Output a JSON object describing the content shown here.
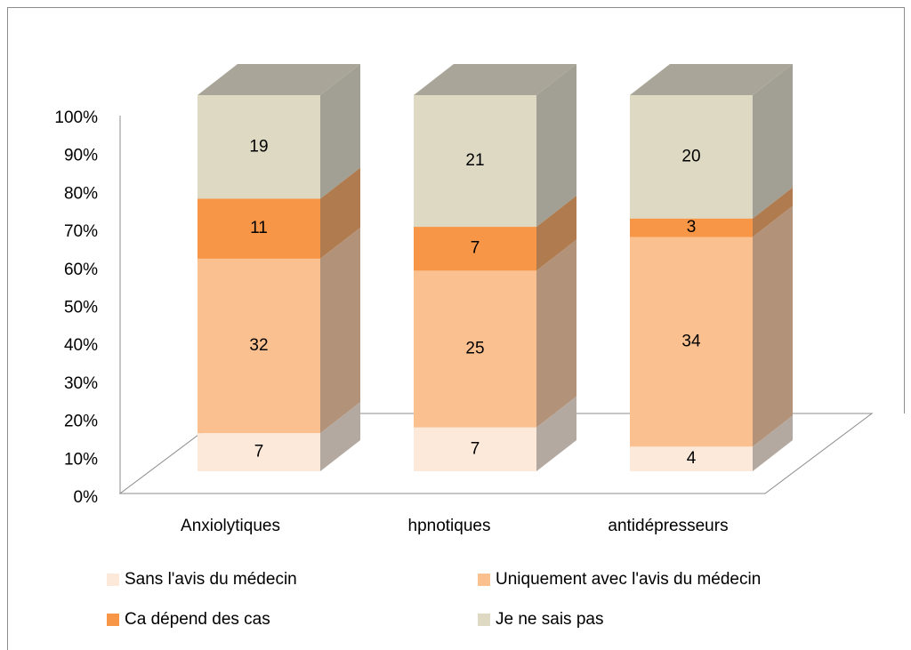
{
  "chart_data": {
    "type": "bar3d",
    "stacking": "percent",
    "categories": [
      "Anxiolytiques",
      "hpnotiques",
      "antidépresseurs"
    ],
    "series": [
      {
        "name": "Sans l'avis du médecin",
        "color": "#fde9d9",
        "values": [
          7,
          7,
          4
        ]
      },
      {
        "name": "Uniquement avec l'avis du médecin",
        "color": "#fac090",
        "values": [
          32,
          25,
          34
        ]
      },
      {
        "name": "Ca dépend des cas",
        "color": "#f79646",
        "values": [
          11,
          7,
          3
        ]
      },
      {
        "name": "Je ne sais pas",
        "color": "#ddd9c3",
        "values": [
          19,
          21,
          20
        ]
      }
    ],
    "ylim": [
      0,
      100
    ],
    "yticks": [
      {
        "value": 0,
        "label": "0%"
      },
      {
        "value": 10,
        "label": "10%"
      },
      {
        "value": 20,
        "label": "20%"
      },
      {
        "value": 30,
        "label": "30%"
      },
      {
        "value": 40,
        "label": "40%"
      },
      {
        "value": 50,
        "label": "50%"
      },
      {
        "value": 60,
        "label": "60%"
      },
      {
        "value": 70,
        "label": "70%"
      },
      {
        "value": 80,
        "label": "80%"
      },
      {
        "value": 90,
        "label": "90%"
      },
      {
        "value": 100,
        "label": "100%"
      }
    ],
    "legend": "bottom"
  }
}
